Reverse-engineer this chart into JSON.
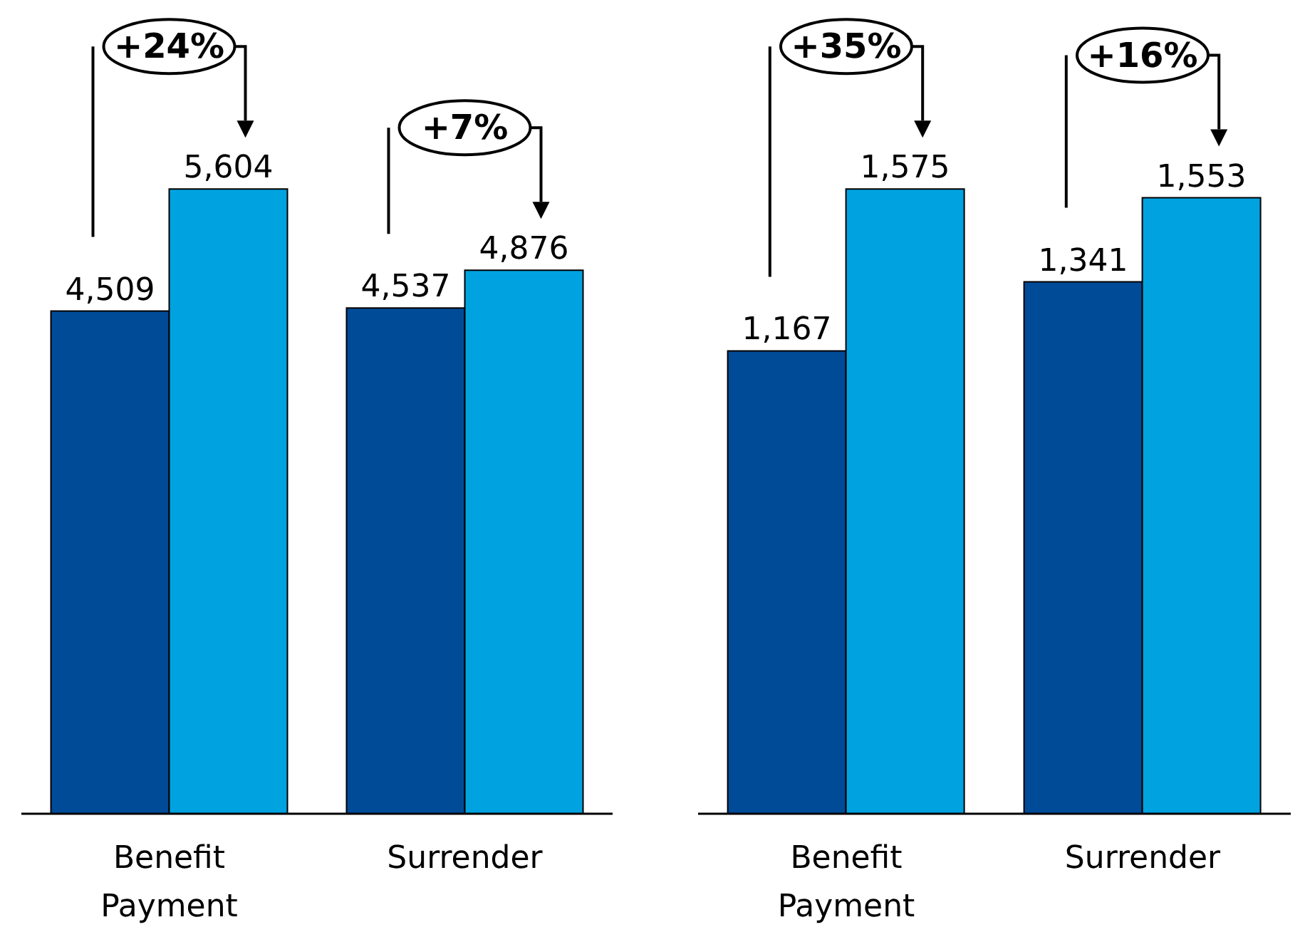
{
  "chart_data": [
    {
      "type": "bar",
      "categories": [
        "Benefit Payment",
        "Surrender"
      ],
      "series": [
        {
          "color": "#004b98",
          "values": [
            4509,
            4537
          ],
          "value_labels": [
            "4,509",
            "4,537"
          ]
        },
        {
          "color": "#00a3e0",
          "values": [
            5604,
            4876
          ],
          "value_labels": [
            "5,604",
            "4,876"
          ]
        }
      ],
      "tick_labels": "x",
      "annotations": [
        "+24%",
        "+7%"
      ]
    },
    {
      "type": "bar",
      "categories": [
        "Benefit Payment",
        "Surrender"
      ],
      "series": [
        {
          "color": "#004b98",
          "values": [
            1167,
            1341
          ],
          "value_labels": [
            "1,167",
            "1,341"
          ]
        },
        {
          "color": "#00a3e0",
          "values": [
            1575,
            1553
          ],
          "value_labels": [
            "1,575",
            "1,553"
          ]
        }
      ],
      "tick_labels": "x",
      "annotations": [
        "+35%",
        "+16%"
      ]
    }
  ]
}
